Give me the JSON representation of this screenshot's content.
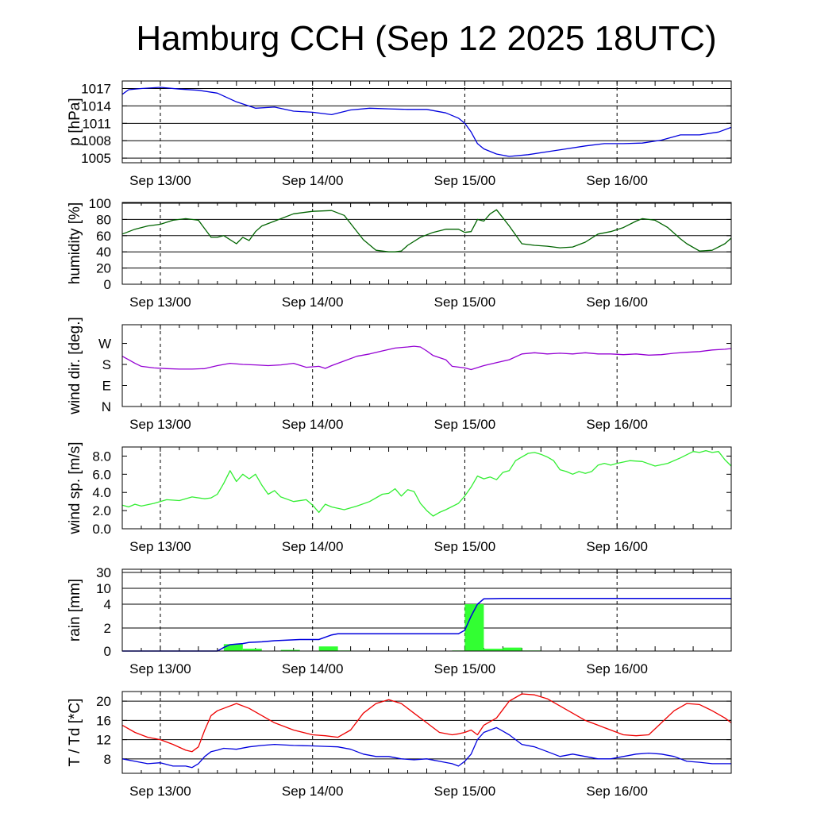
{
  "title": "Hamburg CCH (Sep 12 2025 18UTC)",
  "colors": {
    "pressure": "#0000dd",
    "humidity": "#006400",
    "wind_dir": "#9400d3",
    "wind_speed": "#32ee32",
    "rain_bar": "#32ff32",
    "rain_cum": "#0000dd",
    "temperature": "#ee0000",
    "dewpoint": "#0000dd"
  },
  "chart_data": [
    {
      "type": "line",
      "ylabel": "p [hPa]",
      "x_unit": "hours since Sep 12 18UTC",
      "xlim": [
        0,
        96
      ],
      "x_tick_labels": [
        "Sep 13/00",
        "Sep 14/00",
        "Sep 15/00",
        "Sep 16/00"
      ],
      "x_tick_values": [
        6,
        30,
        54,
        78
      ],
      "ylim": [
        1004.2,
        1018.3
      ],
      "y_ticks": [
        1005,
        1008,
        1011,
        1014,
        1017
      ],
      "y_tick_labels": [
        "1005",
        "1008",
        "1011",
        "1014",
        "1017"
      ],
      "grid": true,
      "series": [
        {
          "color_key": "pressure",
          "x": [
            0,
            1,
            3,
            6,
            9,
            12,
            15,
            18,
            21,
            24,
            27,
            30,
            33,
            36,
            39,
            42,
            45,
            48,
            51,
            53,
            54,
            55,
            56,
            57,
            59,
            61,
            64,
            67,
            70,
            73,
            76,
            79,
            82,
            85,
            87,
            88,
            91,
            94,
            96
          ],
          "y": [
            1016.0,
            1016.8,
            1017.0,
            1017.2,
            1016.9,
            1016.7,
            1016.2,
            1014.7,
            1013.6,
            1013.8,
            1013.1,
            1012.9,
            1012.5,
            1013.3,
            1013.6,
            1013.5,
            1013.4,
            1013.4,
            1012.8,
            1011.9,
            1011.0,
            1009.5,
            1007.5,
            1006.6,
            1005.7,
            1005.3,
            1005.6,
            1006.1,
            1006.6,
            1007.1,
            1007.5,
            1007.5,
            1007.6,
            1008.1,
            1008.7,
            1009.0,
            1009.0,
            1009.5,
            1010.3
          ]
        }
      ]
    },
    {
      "type": "line",
      "ylabel": "humidity [%]",
      "xlim": [
        0,
        96
      ],
      "x_tick_labels": [
        "Sep 13/00",
        "Sep 14/00",
        "Sep 15/00",
        "Sep 16/00"
      ],
      "x_tick_values": [
        6,
        30,
        54,
        78
      ],
      "ylim": [
        0,
        101
      ],
      "y_ticks": [
        0,
        20,
        40,
        60,
        80,
        100
      ],
      "y_tick_labels": [
        "0",
        "20",
        "40",
        "60",
        "80",
        "100"
      ],
      "grid": true,
      "series": [
        {
          "color_key": "humidity",
          "x": [
            0,
            2,
            4,
            6,
            8,
            10,
            12,
            14,
            15,
            16,
            18,
            19,
            20,
            21,
            22,
            24,
            27,
            30,
            33,
            35,
            36,
            38,
            40,
            42,
            43,
            44,
            45,
            47,
            49,
            51,
            53,
            54,
            55,
            56,
            57,
            58,
            59,
            61,
            63,
            65,
            67,
            69,
            71,
            73,
            75,
            77,
            79,
            81,
            82,
            84,
            86,
            88,
            89,
            91,
            93,
            95,
            96
          ],
          "y": [
            62,
            68,
            72,
            74,
            79,
            81,
            79,
            58,
            58,
            60,
            50,
            58,
            54,
            65,
            72,
            78,
            87,
            90,
            91,
            85,
            75,
            55,
            42,
            40,
            40,
            41,
            48,
            58,
            64,
            68,
            68,
            64,
            65,
            80,
            78,
            87,
            92,
            72,
            50,
            48,
            47,
            45,
            46,
            52,
            62,
            65,
            70,
            78,
            81,
            79,
            70,
            56,
            50,
            41,
            42,
            50,
            57
          ]
        }
      ]
    },
    {
      "type": "line",
      "ylabel": "wind dir. [deg.]",
      "xlim": [
        0,
        96
      ],
      "x_tick_labels": [
        "Sep 13/00",
        "Sep 14/00",
        "Sep 15/00",
        "Sep 16/00"
      ],
      "x_tick_values": [
        6,
        30,
        54,
        78
      ],
      "ylim": [
        0,
        350
      ],
      "y_ticks": [
        0,
        90,
        180,
        270
      ],
      "y_tick_labels": [
        "N",
        "E",
        "S",
        "W"
      ],
      "grid": false,
      "series": [
        {
          "color_key": "wind_dir",
          "x": [
            0,
            1,
            2,
            3,
            5,
            7,
            9,
            11,
            13,
            15,
            17,
            19,
            21,
            23,
            25,
            27,
            29,
            30,
            31,
            32,
            33,
            35,
            37,
            39,
            41,
            43,
            45,
            46,
            47,
            48,
            49,
            51,
            52,
            54,
            55,
            57,
            59,
            61,
            63,
            65,
            67,
            69,
            71,
            73,
            75,
            77,
            79,
            81,
            83,
            85,
            87,
            89,
            91,
            93,
            95,
            96
          ],
          "y": [
            215,
            200,
            185,
            172,
            165,
            162,
            160,
            160,
            162,
            175,
            185,
            180,
            178,
            175,
            178,
            185,
            168,
            170,
            172,
            163,
            175,
            195,
            215,
            225,
            238,
            250,
            255,
            258,
            255,
            238,
            218,
            200,
            172,
            165,
            158,
            175,
            188,
            200,
            225,
            230,
            225,
            228,
            225,
            230,
            225,
            225,
            222,
            225,
            220,
            222,
            228,
            232,
            235,
            242,
            245,
            248
          ]
        }
      ]
    },
    {
      "type": "line",
      "ylabel": "wind sp. [m/s]",
      "xlim": [
        0,
        96
      ],
      "x_tick_labels": [
        "Sep 13/00",
        "Sep 14/00",
        "Sep 15/00",
        "Sep 16/00"
      ],
      "x_tick_values": [
        6,
        30,
        54,
        78
      ],
      "ylim": [
        0,
        9.0
      ],
      "y_ticks": [
        0,
        2,
        4,
        6,
        8
      ],
      "y_tick_labels": [
        "0.0",
        "2.0",
        "4.0",
        "6.0",
        "8.0"
      ],
      "grid": false,
      "series": [
        {
          "color_key": "wind_speed",
          "x": [
            0,
            1,
            2,
            3,
            5,
            7,
            9,
            11,
            13,
            14,
            15,
            16,
            17,
            18,
            19,
            20,
            21,
            22,
            23,
            24,
            25,
            27,
            29,
            30,
            31,
            32,
            33,
            35,
            37,
            39,
            41,
            42,
            43,
            44,
            45,
            46,
            47,
            48,
            49,
            50,
            51,
            53,
            54,
            55,
            56,
            57,
            58,
            59,
            60,
            61,
            62,
            63,
            64,
            65,
            66,
            67,
            68,
            69,
            70,
            71,
            72,
            73,
            74,
            75,
            76,
            77,
            78,
            80,
            82,
            84,
            86,
            88,
            90,
            91,
            92,
            93,
            94,
            95,
            96
          ],
          "y": [
            2.6,
            2.4,
            2.7,
            2.5,
            2.8,
            3.2,
            3.1,
            3.5,
            3.3,
            3.4,
            3.8,
            5.0,
            6.4,
            5.2,
            6.0,
            5.5,
            6.0,
            4.8,
            3.8,
            4.2,
            3.5,
            3.0,
            3.2,
            2.6,
            1.8,
            2.7,
            2.4,
            2.1,
            2.5,
            3.0,
            3.8,
            3.9,
            4.4,
            3.6,
            4.3,
            4.1,
            2.8,
            2.0,
            1.4,
            1.8,
            2.1,
            2.8,
            3.6,
            4.6,
            5.8,
            5.5,
            5.7,
            5.4,
            6.2,
            6.4,
            7.5,
            7.9,
            8.3,
            8.4,
            8.2,
            7.9,
            7.5,
            6.5,
            6.3,
            6.0,
            6.3,
            6.1,
            6.3,
            7.0,
            7.2,
            7.0,
            7.2,
            7.5,
            7.4,
            6.9,
            7.2,
            7.8,
            8.5,
            8.4,
            8.6,
            8.4,
            8.5,
            7.6,
            6.9
          ]
        }
      ]
    },
    {
      "type": "bar",
      "ylabel": "rain [mm]",
      "xlim": [
        0,
        96
      ],
      "x_tick_labels": [
        "Sep 13/00",
        "Sep 14/00",
        "Sep 15/00",
        "Sep 16/00"
      ],
      "x_tick_values": [
        6,
        30,
        54,
        78
      ],
      "y_scale": "nonlinear",
      "y_ticks": [
        0,
        2,
        4,
        10,
        30
      ],
      "y_tick_labels": [
        "0",
        "2",
        "4",
        "10",
        "30"
      ],
      "grid": true,
      "bars_3h": {
        "x_start": [
          16,
          19,
          25,
          31,
          33,
          52,
          54,
          57,
          60,
          63
        ],
        "values": [
          0.6,
          0.2,
          0.1,
          0.4,
          0.05,
          0.05,
          4.0,
          0.2,
          0.3,
          0.05
        ]
      },
      "cumulative": {
        "color_key": "rain_cum",
        "x": [
          0,
          15,
          16,
          17,
          18,
          19,
          20,
          22,
          24,
          26,
          28,
          29,
          30,
          31,
          32,
          33,
          34,
          36,
          40,
          44,
          48,
          52,
          53,
          54,
          55,
          56,
          57,
          60,
          66,
          72,
          78,
          84,
          90,
          96
        ],
        "y": [
          0,
          0,
          0.3,
          0.55,
          0.6,
          0.65,
          0.75,
          0.8,
          0.9,
          0.95,
          1.0,
          1.0,
          1.0,
          1.0,
          1.2,
          1.4,
          1.5,
          1.5,
          1.5,
          1.5,
          1.5,
          1.5,
          1.5,
          1.8,
          3.0,
          4.0,
          6.0,
          6.2,
          6.2,
          6.2,
          6.2,
          6.2,
          6.2,
          6.2
        ]
      }
    },
    {
      "type": "line",
      "ylabel": "T / Td [*C]",
      "xlim": [
        0,
        96
      ],
      "x_tick_labels": [
        "Sep 13/00",
        "Sep 14/00",
        "Sep 15/00",
        "Sep 16/00"
      ],
      "x_tick_values": [
        6,
        30,
        54,
        78
      ],
      "ylim": [
        5,
        22
      ],
      "y_ticks": [
        8,
        12,
        16,
        20
      ],
      "y_tick_labels": [
        "8",
        "12",
        "16",
        "20"
      ],
      "grid": true,
      "series": [
        {
          "color_key": "temperature",
          "x": [
            0,
            2,
            4,
            6,
            8,
            10,
            11,
            12,
            13,
            14,
            15,
            16,
            18,
            20,
            22,
            24,
            27,
            30,
            32,
            34,
            36,
            38,
            40,
            42,
            44,
            46,
            48,
            50,
            52,
            53,
            54,
            55,
            56,
            57,
            59,
            61,
            63,
            65,
            67,
            69,
            71,
            73,
            75,
            77,
            79,
            81,
            83,
            85,
            87,
            89,
            91,
            93,
            95,
            96
          ],
          "y": [
            15.0,
            13.5,
            12.5,
            12.0,
            11.0,
            9.8,
            9.5,
            10.5,
            14.0,
            17.0,
            18.0,
            18.5,
            19.5,
            18.5,
            17.0,
            15.5,
            14.0,
            13.0,
            12.8,
            12.5,
            14.0,
            17.5,
            19.5,
            20.3,
            19.5,
            17.5,
            15.5,
            13.5,
            13.0,
            13.2,
            13.5,
            14.0,
            13.0,
            15.0,
            16.5,
            20.0,
            21.5,
            21.3,
            20.5,
            19.0,
            17.5,
            16.0,
            15.0,
            14.0,
            13.0,
            12.8,
            13.0,
            15.5,
            18.0,
            19.5,
            19.3,
            18.0,
            16.5,
            15.5
          ]
        },
        {
          "color_key": "dewpoint",
          "x": [
            0,
            2,
            4,
            6,
            8,
            10,
            11,
            12,
            13,
            14,
            15,
            16,
            18,
            20,
            22,
            24,
            27,
            30,
            32,
            34,
            36,
            38,
            40,
            42,
            44,
            46,
            48,
            50,
            52,
            53,
            54,
            55,
            56,
            57,
            59,
            61,
            63,
            65,
            67,
            69,
            71,
            73,
            75,
            77,
            79,
            81,
            83,
            85,
            87,
            89,
            91,
            93,
            95,
            96
          ],
          "y": [
            8.0,
            7.5,
            7.0,
            7.2,
            6.5,
            6.5,
            6.2,
            7.0,
            8.5,
            9.5,
            9.8,
            10.2,
            10.0,
            10.5,
            10.8,
            11.0,
            10.8,
            10.7,
            10.6,
            10.5,
            10.0,
            9.0,
            8.5,
            8.5,
            8.0,
            7.8,
            8.0,
            7.5,
            7.0,
            6.5,
            7.5,
            9.0,
            12.0,
            13.5,
            14.5,
            13.0,
            11.0,
            10.5,
            9.5,
            8.5,
            9.0,
            8.5,
            8.0,
            8.0,
            8.5,
            9.0,
            9.2,
            9.0,
            8.5,
            7.5,
            7.3,
            7.0,
            7.0,
            7.0
          ]
        }
      ]
    }
  ]
}
